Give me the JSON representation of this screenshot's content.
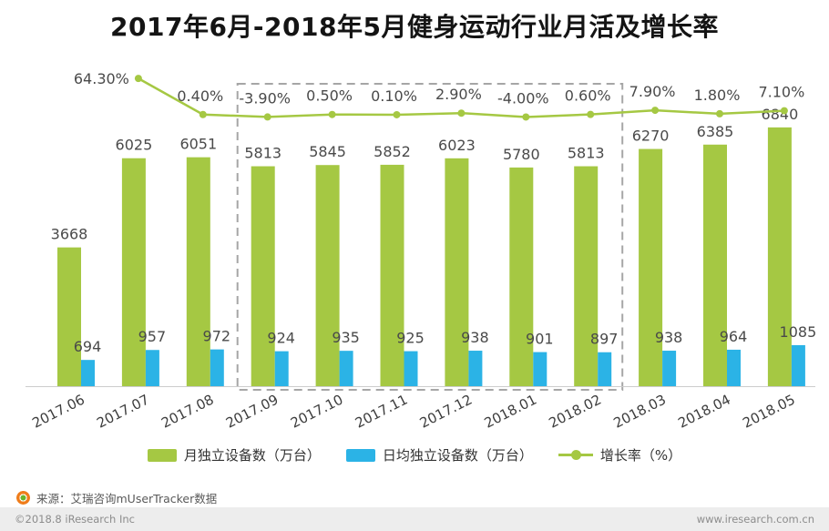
{
  "title": "2017年6月-2018年5月健身运动行业月活及增长率",
  "chart_data": {
    "type": "bar",
    "subtype": "grouped-bars-with-growth-line",
    "categories": [
      "2017.06",
      "2017.07",
      "2017.08",
      "2017.09",
      "2017.10",
      "2017.11",
      "2017.12",
      "2018.01",
      "2018.02",
      "2018.03",
      "2018.04",
      "2018.05"
    ],
    "series": [
      {
        "name": "月独立设备数（万台）",
        "type": "bar",
        "color": "#a5c843",
        "values": [
          3668,
          6025,
          6051,
          5813,
          5845,
          5852,
          6023,
          5780,
          5813,
          6270,
          6385,
          6840
        ]
      },
      {
        "name": "日均独立设备数（万台）",
        "type": "bar",
        "color": "#2bb3e6",
        "values": [
          694,
          957,
          972,
          924,
          935,
          925,
          938,
          901,
          897,
          938,
          964,
          1085
        ]
      },
      {
        "name": "增长率（%）",
        "type": "line",
        "color": "#a5c843",
        "values": [
          null,
          64.3,
          0.4,
          -3.9,
          0.5,
          0.1,
          2.9,
          -4.0,
          0.6,
          7.9,
          1.8,
          7.1
        ],
        "display_labels": [
          "",
          "64.30%",
          "0.40%",
          "-3.90%",
          "0.50%",
          "0.10%",
          "2.90%",
          "-4.00%",
          "0.60%",
          "7.90%",
          "1.80%",
          "7.10%"
        ]
      }
    ],
    "ylim": [
      0,
      7800
    ],
    "grid": false,
    "legend_position": "bottom",
    "highlight_range": {
      "from": "2017.09",
      "to": "2018.02"
    }
  },
  "source": "来源：艾瑞咨询mUserTracker数据",
  "footer": {
    "left": "©2018.8 iResearch Inc",
    "right": "www.iresearch.com.cn"
  }
}
